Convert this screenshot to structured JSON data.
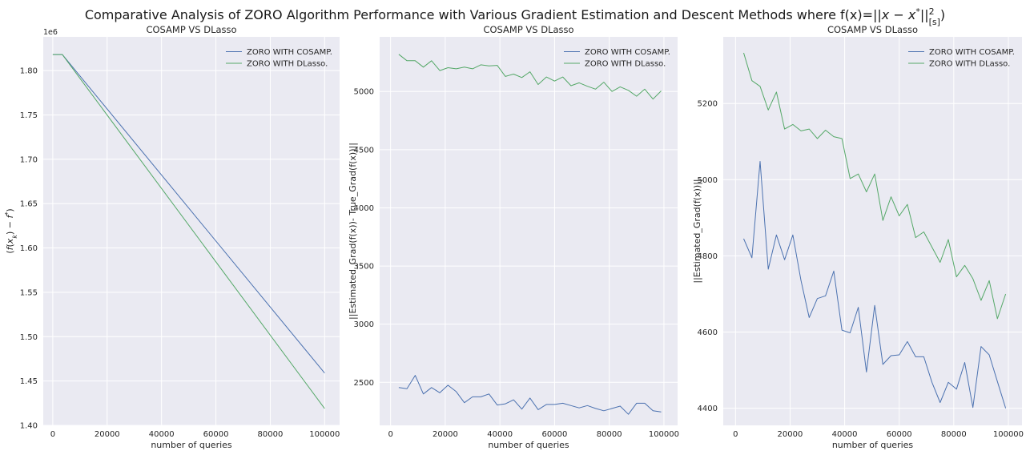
{
  "figure": {
    "suptitle": "Comparative Analysis of ZORO Algorithm Performance with Various Gradient Estimation and Descent Methods where f(x)=||x − x*||²[s])",
    "background": "#ffffff",
    "axes_facecolor": "#eaeaf2",
    "grid_color": "#ffffff",
    "series_colors": [
      "#4c72b0",
      "#55a868"
    ]
  },
  "chart_data": [
    {
      "type": "line",
      "title": "COSAMP VS DLasso",
      "xlabel": "number of queries",
      "ylabel": "(f(x_k) − f*)",
      "offset_text": "1e6",
      "xlim": [
        -3500,
        105500
      ],
      "ylim": [
        1.4,
        1.838
      ],
      "xticks": [
        0,
        20000,
        40000,
        60000,
        80000,
        100000
      ],
      "xtick_labels": [
        "0",
        "20000",
        "40000",
        "60000",
        "80000",
        "100000"
      ],
      "yticks": [
        1.4,
        1.45,
        1.5,
        1.55,
        1.6,
        1.65,
        1.7,
        1.75,
        1.8
      ],
      "ytick_labels": [
        "1.40",
        "1.45",
        "1.50",
        "1.55",
        "1.60",
        "1.65",
        "1.70",
        "1.75",
        "1.80"
      ],
      "grid": true,
      "legend": "top-right",
      "series": [
        {
          "name": "ZORO WITH COSAMP.",
          "x": [
            0,
            3500,
            100000
          ],
          "y": [
            1.818,
            1.818,
            1.459
          ]
        },
        {
          "name": "ZORO WITH DLasso.",
          "x": [
            0,
            3500,
            100000
          ],
          "y": [
            1.818,
            1.818,
            1.419
          ]
        }
      ]
    },
    {
      "type": "line",
      "title": "COSAMP VS DLasso",
      "xlabel": "number of queries",
      "ylabel": "||Estimated_Grad(f(x))- True_Grad(f(x))||",
      "offset_text": "",
      "xlim": [
        -4000,
        105000
      ],
      "ylim": [
        2130,
        5470
      ],
      "xticks": [
        0,
        20000,
        40000,
        60000,
        80000,
        100000
      ],
      "xtick_labels": [
        "0",
        "20000",
        "40000",
        "60000",
        "80000",
        "100000"
      ],
      "yticks": [
        2500,
        3000,
        3500,
        4000,
        4500,
        5000
      ],
      "ytick_labels": [
        "2500",
        "3000",
        "3500",
        "4000",
        "4500",
        "5000"
      ],
      "grid": true,
      "legend": "top-right",
      "series": [
        {
          "name": "ZORO WITH COSAMP.",
          "x": [
            3000,
            6000,
            9000,
            12000,
            15000,
            18000,
            21000,
            24000,
            27000,
            30000,
            33000,
            36000,
            39000,
            42000,
            45000,
            48000,
            51000,
            54000,
            57000,
            60000,
            63000,
            66000,
            69000,
            72000,
            75000,
            78000,
            81000,
            84000,
            87000,
            90000,
            93000,
            96000,
            99000
          ],
          "y": [
            2455,
            2445,
            2560,
            2400,
            2455,
            2410,
            2475,
            2420,
            2325,
            2375,
            2375,
            2400,
            2305,
            2315,
            2350,
            2270,
            2365,
            2265,
            2310,
            2310,
            2320,
            2300,
            2280,
            2300,
            2275,
            2255,
            2275,
            2295,
            2225,
            2320,
            2320,
            2255,
            2245
          ]
        },
        {
          "name": "ZORO WITH DLasso.",
          "x": [
            3000,
            6000,
            9000,
            12000,
            15000,
            18000,
            21000,
            24000,
            27000,
            30000,
            33000,
            36000,
            39000,
            42000,
            45000,
            48000,
            51000,
            54000,
            57000,
            60000,
            63000,
            66000,
            69000,
            72000,
            75000,
            78000,
            81000,
            84000,
            87000,
            90000,
            93000,
            96000,
            99000
          ],
          "y": [
            5320,
            5265,
            5265,
            5210,
            5265,
            5180,
            5205,
            5195,
            5210,
            5195,
            5230,
            5220,
            5225,
            5130,
            5150,
            5120,
            5170,
            5060,
            5125,
            5090,
            5125,
            5050,
            5075,
            5045,
            5020,
            5080,
            5000,
            5040,
            5010,
            4960,
            5020,
            4935,
            5005
          ]
        }
      ]
    },
    {
      "type": "line",
      "title": "COSAMP VS DLasso",
      "xlabel": "number of queries",
      "ylabel": "||Estimated_Grad(f(x))||",
      "offset_text": "",
      "xlim": [
        -4500,
        105000
      ],
      "ylim": [
        4355,
        5375
      ],
      "xticks": [
        0,
        20000,
        40000,
        60000,
        80000,
        100000
      ],
      "xtick_labels": [
        "0",
        "20000",
        "40000",
        "60000",
        "80000",
        "100000"
      ],
      "yticks": [
        4400,
        4600,
        4800,
        5000,
        5200
      ],
      "ytick_labels": [
        "4400",
        "4600",
        "4800",
        "5000",
        "5200"
      ],
      "grid": true,
      "legend": "top-right",
      "series": [
        {
          "name": "ZORO WITH COSAMP.",
          "x": [
            3000,
            6000,
            9000,
            12000,
            15000,
            18000,
            21000,
            24000,
            27000,
            30000,
            33000,
            36000,
            39000,
            42000,
            45000,
            48000,
            51000,
            54000,
            57000,
            60000,
            63000,
            66000,
            69000,
            72000,
            75000,
            78000,
            81000,
            84000,
            87000,
            90000,
            93000,
            96000,
            99000
          ],
          "y": [
            4845,
            4795,
            5048,
            4765,
            4855,
            4790,
            4855,
            4735,
            4638,
            4688,
            4695,
            4760,
            4605,
            4598,
            4665,
            4495,
            4670,
            4515,
            4538,
            4540,
            4575,
            4535,
            4535,
            4468,
            4415,
            4468,
            4450,
            4520,
            4402,
            4562,
            4540,
            4470,
            4400
          ]
        },
        {
          "name": "ZORO WITH DLasso.",
          "x": [
            3000,
            6000,
            9000,
            12000,
            15000,
            18000,
            21000,
            24000,
            27000,
            30000,
            33000,
            36000,
            39000,
            42000,
            45000,
            48000,
            51000,
            54000,
            57000,
            60000,
            63000,
            66000,
            69000,
            72000,
            75000,
            78000,
            81000,
            84000,
            87000,
            90000,
            93000,
            96000,
            99000
          ],
          "y": [
            5333,
            5260,
            5245,
            5183,
            5230,
            5133,
            5145,
            5128,
            5133,
            5108,
            5130,
            5113,
            5108,
            5003,
            5015,
            4968,
            5015,
            4893,
            4955,
            4905,
            4935,
            4848,
            4863,
            4823,
            4783,
            4843,
            4745,
            4775,
            4740,
            4683,
            4735,
            4635,
            4700
          ]
        }
      ]
    }
  ]
}
